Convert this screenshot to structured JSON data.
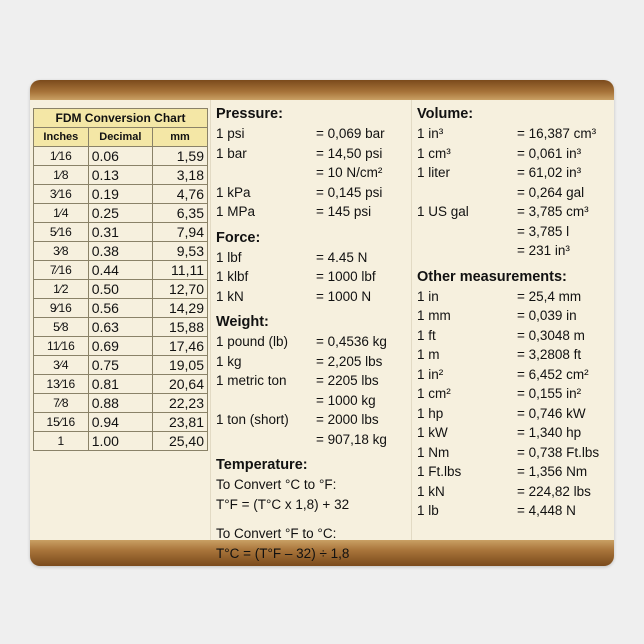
{
  "table": {
    "title": "FDM Conversion Chart",
    "headers": [
      "Inches",
      "Decimal",
      "mm"
    ],
    "rows": [
      [
        "1⁄16",
        "0.06",
        "1,59"
      ],
      [
        "1⁄8",
        "0.13",
        "3,18"
      ],
      [
        "3⁄16",
        "0.19",
        "4,76"
      ],
      [
        "1⁄4",
        "0.25",
        "6,35"
      ],
      [
        "5⁄16",
        "0.31",
        "7,94"
      ],
      [
        "3⁄8",
        "0.38",
        "9,53"
      ],
      [
        "7⁄16",
        "0.44",
        "11,11"
      ],
      [
        "1⁄2",
        "0.50",
        "12,70"
      ],
      [
        "9⁄16",
        "0.56",
        "14,29"
      ],
      [
        "5⁄8",
        "0.63",
        "15,88"
      ],
      [
        "11⁄16",
        "0.69",
        "17,46"
      ],
      [
        "3⁄4",
        "0.75",
        "19,05"
      ],
      [
        "13⁄16",
        "0.81",
        "20,64"
      ],
      [
        "7⁄8",
        "0.88",
        "22,23"
      ],
      [
        "15⁄16",
        "0.94",
        "23,81"
      ],
      [
        "1",
        "1.00",
        "25,40"
      ]
    ]
  },
  "pressure": {
    "title": "Pressure:",
    "rows": [
      [
        "1 psi",
        "= 0,069 bar"
      ],
      [
        "1 bar",
        "= 14,50 psi"
      ],
      [
        "",
        "= 10 N/cm²"
      ],
      [
        "1 kPa",
        "= 0,145 psi"
      ],
      [
        "1 MPa",
        "= 145 psi"
      ]
    ]
  },
  "force": {
    "title": "Force:",
    "rows": [
      [
        "1 lbf",
        "= 4.45 N"
      ],
      [
        "1 klbf",
        "= 1000 lbf"
      ],
      [
        "1 kN",
        "= 1000 N"
      ]
    ]
  },
  "weight": {
    "title": "Weight:",
    "rows": [
      [
        "1 pound (lb)",
        "= 0,4536 kg"
      ],
      [
        "1 kg",
        "= 2,205 lbs"
      ],
      [
        "1 metric ton",
        "= 2205 lbs"
      ],
      [
        "",
        "= 1000 kg"
      ],
      [
        "1 ton (short)",
        "= 2000 lbs"
      ],
      [
        "",
        "= 907,18 kg"
      ]
    ]
  },
  "temperature": {
    "title": "Temperature:",
    "lines": [
      "To Convert °C to °F:",
      "T°F = (T°C x 1,8) + 32",
      "",
      "To Convert °F to °C:",
      "T°C = (T°F – 32) ÷ 1,8"
    ]
  },
  "volume": {
    "title": "Volume:",
    "rows": [
      [
        "1 in³",
        "= 16,387 cm³"
      ],
      [
        "1 cm³",
        "= 0,061 in³"
      ],
      [
        "1 liter",
        "= 61,02 in³"
      ],
      [
        "",
        "= 0,264 gal"
      ],
      [
        "1 US gal",
        "= 3,785 cm³"
      ],
      [
        "",
        "= 3,785 l"
      ],
      [
        "",
        "= 231 in³"
      ]
    ]
  },
  "other": {
    "title": "Other measurements:",
    "rows": [
      [
        "1 in",
        "= 25,4 mm"
      ],
      [
        "1 mm",
        "= 0,039 in"
      ],
      [
        "1 ft",
        "= 0,3048 m"
      ],
      [
        "1 m",
        "= 3,2808 ft"
      ],
      [
        "1 in²",
        "= 6,452 cm²"
      ],
      [
        "1 cm²",
        "= 0,155 in²"
      ],
      [
        "1 hp",
        "= 0,746 kW"
      ],
      [
        "1 kW",
        "= 1,340 hp"
      ],
      [
        "1 Nm",
        "= 0,738 Ft.lbs"
      ],
      [
        "1 Ft.lbs",
        "= 1,356 Nm"
      ],
      [
        "1 kN",
        "= 224,82 lbs"
      ],
      [
        "1 lb",
        "= 4,448 N"
      ]
    ]
  }
}
